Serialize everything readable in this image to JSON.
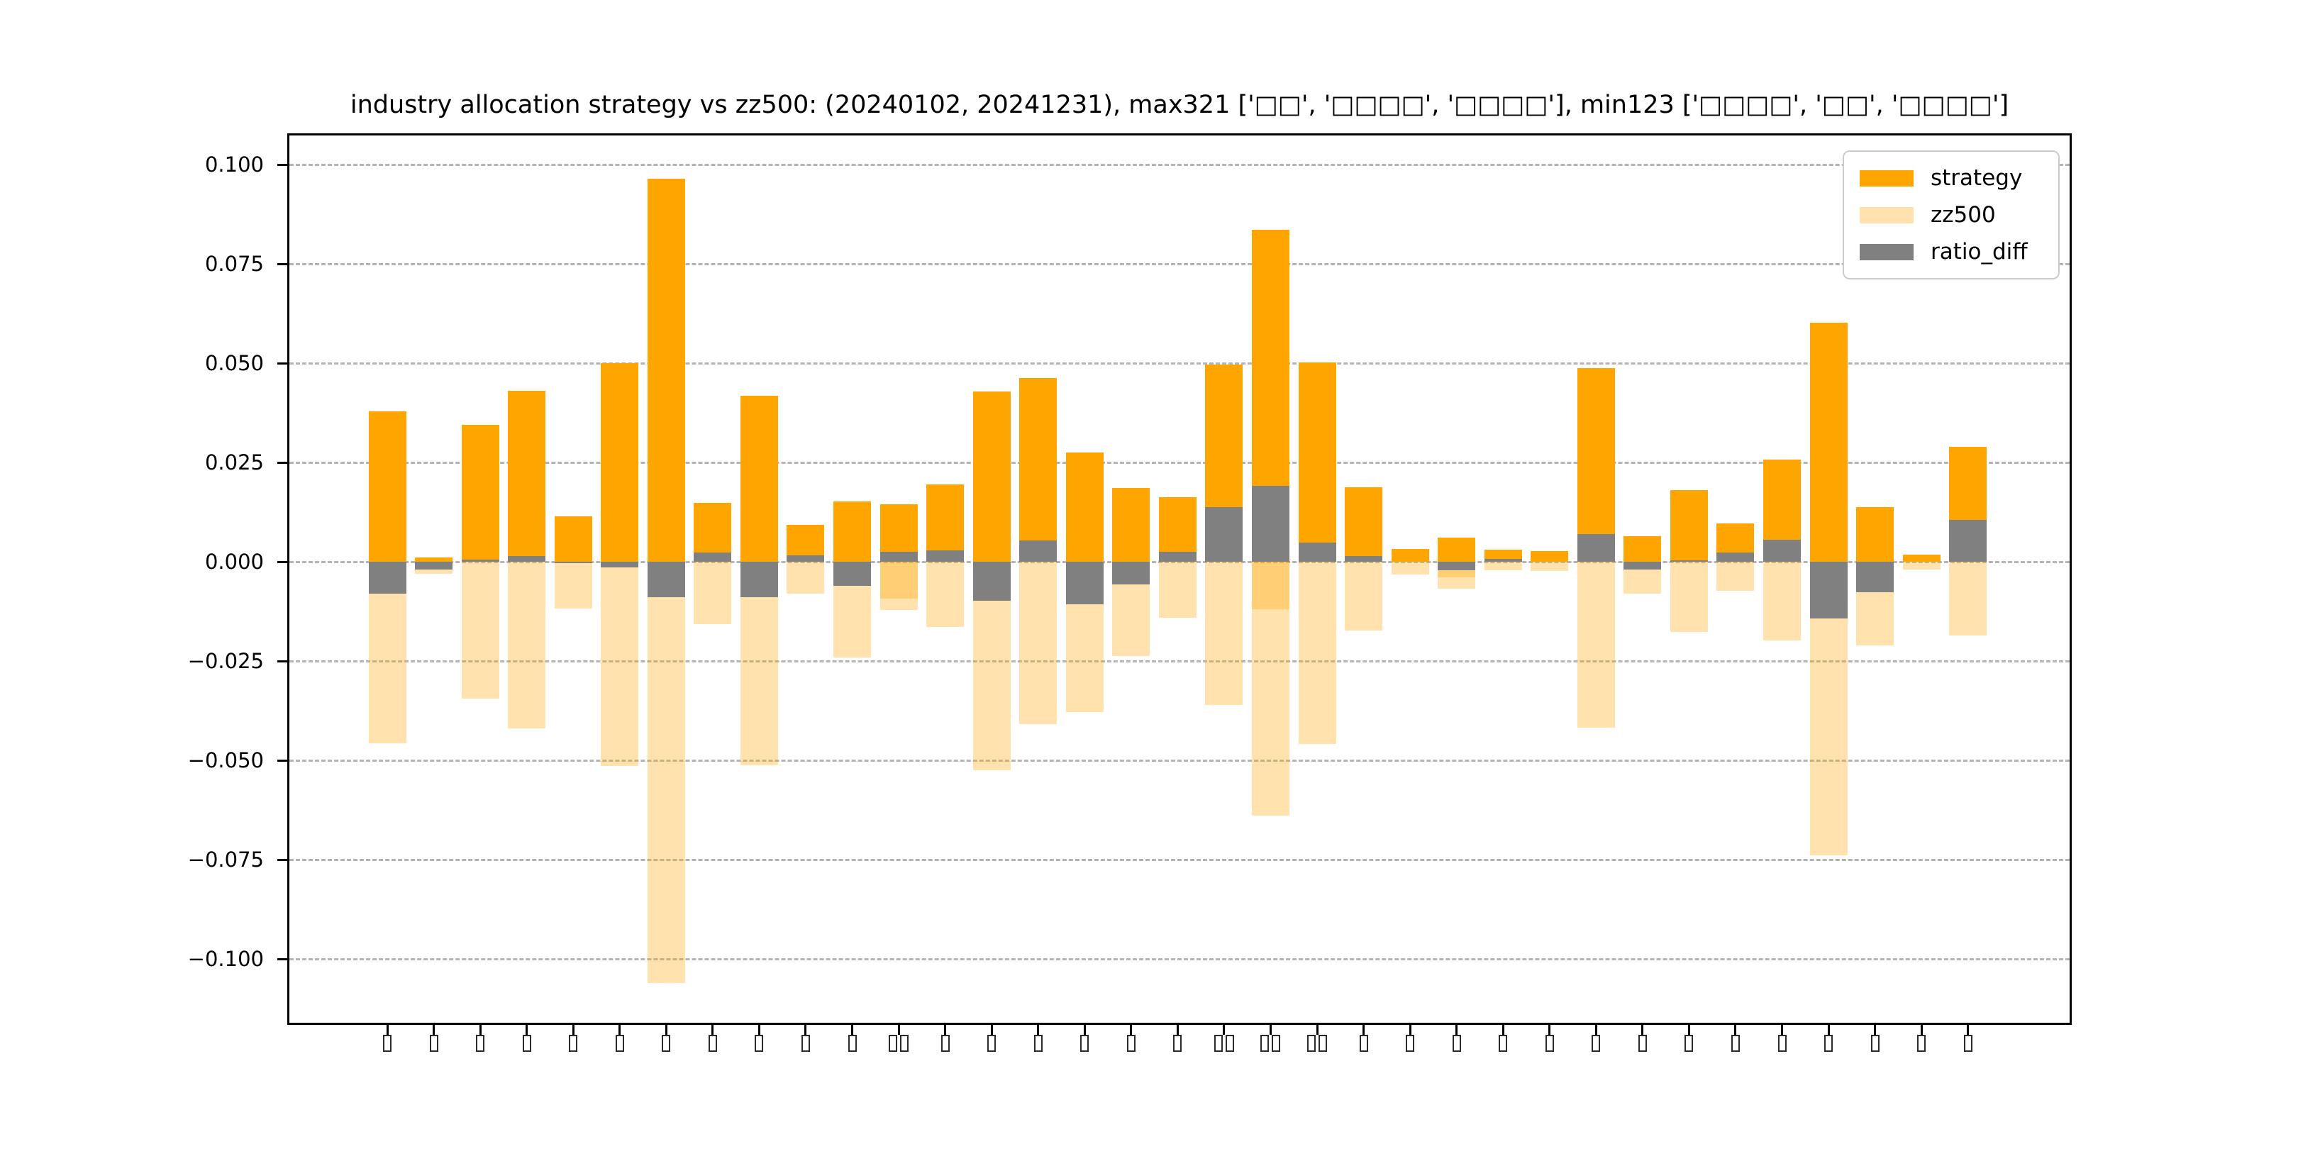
{
  "title": "industry allocation strategy vs zz500: (20240102, 20241231), max321 ['□□', '□□□□', '□□□□'], min123 ['□□□□', '□□', '□□□□']",
  "colors": {
    "strategy": "#FFA500",
    "zz500_base": "255,165,0",
    "zz500_alpha": 0.32,
    "ratio_diff": "#808080",
    "grid": "#b4b4b4",
    "spine": "#000000"
  },
  "legend": {
    "items": [
      {
        "label": "strategy"
      },
      {
        "label": "zz500"
      },
      {
        "label": "ratio_diff"
      }
    ]
  },
  "chart_data": {
    "type": "bar",
    "title": "industry allocation strategy vs zz500: (20240102, 20241231), max321 ['□□', '□□□□', '□□□□'], min123 ['□□□□', '□□', '□□□□']",
    "xlabel": "",
    "ylabel": "",
    "ylim": [
      -0.1166,
      0.1079
    ],
    "grid": true,
    "legend_position": "upper right",
    "ytick_labels": [
      "0.100",
      "0.075",
      "0.050",
      "0.025",
      "0.000",
      "−0.025",
      "−0.050",
      "−0.075",
      "−0.100"
    ],
    "ytick_values": [
      0.1,
      0.075,
      0.05,
      0.025,
      0.0,
      -0.025,
      -0.05,
      -0.075,
      -0.1
    ],
    "categories": [
      "□",
      "□",
      "□",
      "□",
      "□",
      "□",
      "□",
      "□",
      "□",
      "□",
      "□",
      "□□",
      "□",
      "□",
      "□",
      "□",
      "□",
      "□",
      "□□",
      "□□",
      "□□",
      "□",
      "□",
      "□",
      "□",
      "□",
      "□",
      "□",
      "□",
      "□",
      "□",
      "□",
      "□",
      "□",
      "□"
    ],
    "series": [
      {
        "name": "strategy",
        "values": [
          0.0378,
          0.001,
          0.0345,
          0.043,
          0.0114,
          0.05,
          0.0965,
          0.0149,
          0.0418,
          0.0093,
          0.0152,
          0.0145,
          0.0195,
          0.0428,
          0.0463,
          0.0275,
          0.0186,
          0.0162,
          0.0497,
          0.0835,
          0.0501,
          0.0187,
          0.0033,
          0.006,
          0.0031,
          0.0027,
          0.0487,
          0.0064,
          0.0181,
          0.0097,
          0.0257,
          0.0601,
          0.0137,
          0.0018,
          0.029
        ]
      },
      {
        "name": "zz500",
        "values": [
          -0.0458,
          -0.003,
          -0.0344,
          -0.0419,
          -0.0118,
          -0.0514,
          -0.106,
          -0.0158,
          -0.0513,
          -0.008,
          -0.0241,
          -0.0121,
          -0.0165,
          -0.0525,
          -0.0409,
          -0.0378,
          -0.0237,
          -0.0141,
          -0.036,
          -0.064,
          -0.0459,
          -0.0173,
          -0.0032,
          -0.0067,
          -0.0022,
          -0.0024,
          -0.0418,
          -0.008,
          -0.0176,
          -0.0074,
          -0.0198,
          -0.0739,
          -0.0211,
          -0.0019,
          -0.0185
        ]
      },
      {
        "name": "ratio_diff",
        "values": [
          -0.008,
          -0.002,
          0.0005,
          0.0014,
          -0.0004,
          -0.0014,
          -0.009,
          0.0024,
          -0.009,
          0.0016,
          -0.006,
          0.0025,
          0.0028,
          -0.0099,
          0.0053,
          -0.0108,
          -0.0058,
          0.0025,
          0.0138,
          0.0191,
          0.0049,
          0.0015,
          0.0003,
          -0.0022,
          0.0008,
          0.0003,
          0.007,
          -0.0019,
          0.0004,
          0.0024,
          0.0055,
          -0.0143,
          -0.0077,
          0.0002,
          0.0106
        ]
      }
    ],
    "zz500_inner_overlap": {
      "11": -0.0092,
      "19": -0.012,
      "23": -0.004
    }
  }
}
